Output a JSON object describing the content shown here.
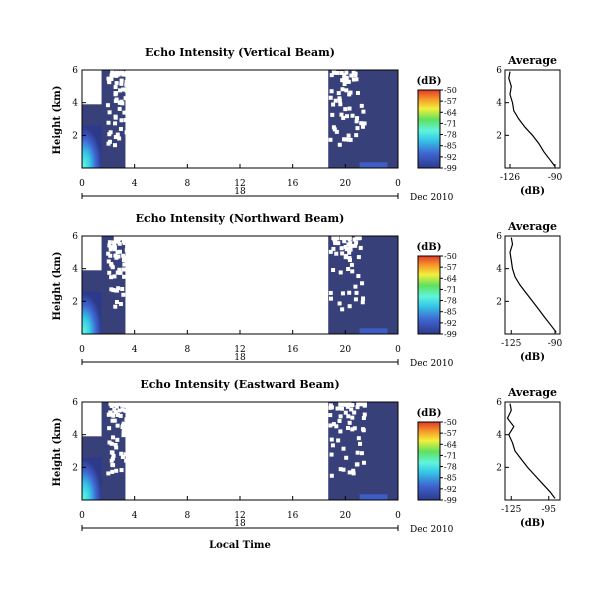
{
  "figure": {
    "xaxis_title": "Local Time",
    "x_ticks": [
      "0",
      "4",
      "8",
      "12",
      "16",
      "20",
      "0"
    ],
    "date_label": "Dec 2010",
    "day_marker": "18",
    "y_ticks": [
      "6",
      "4",
      "2"
    ],
    "avg_title": "Average",
    "avg_xlabel": "(dB)",
    "colorbar_unit": "(dB)",
    "colorbar_ticks": [
      "-50",
      "-57",
      "-64",
      "-71",
      "-78",
      "-85",
      "-92",
      "-99"
    ]
  },
  "chart_data": [
    {
      "type": "heatmap",
      "title": "Echo Intensity (Vertical Beam)",
      "ylabel": "Height (km)",
      "xlabel": "",
      "x_range_hours": [
        0,
        24
      ],
      "ylim_km": [
        0,
        6
      ],
      "colorbar_range_db": [
        -99,
        -50
      ],
      "data_coverage_hours": [
        [
          0,
          3.3
        ],
        [
          18.7,
          24
        ]
      ],
      "average_profile": {
        "title": "Average",
        "xlabel": "(dB)",
        "x_ticks": [
          "-126",
          "-90"
        ],
        "xlim": [
          -130,
          -86
        ],
        "height_km": [
          0.1,
          0.5,
          1.0,
          1.5,
          2.0,
          2.5,
          3.0,
          3.5,
          4.0,
          4.5,
          5.0,
          5.5,
          5.9
        ],
        "db": [
          -90,
          -94,
          -99,
          -103,
          -108,
          -114,
          -119,
          -123,
          -124,
          -126,
          -125,
          -127,
          -126
        ]
      }
    },
    {
      "type": "heatmap",
      "title": "Echo Intensity (Northward Beam)",
      "ylabel": "Height (km)",
      "xlabel": "",
      "x_range_hours": [
        0,
        24
      ],
      "ylim_km": [
        0,
        6
      ],
      "colorbar_range_db": [
        -99,
        -50
      ],
      "data_coverage_hours": [
        [
          0,
          3.3
        ],
        [
          18.7,
          24
        ]
      ],
      "average_profile": {
        "title": "Average",
        "xlabel": "(dB)",
        "x_ticks": [
          "-125",
          "-90"
        ],
        "xlim": [
          -130,
          -86
        ],
        "height_km": [
          0.1,
          0.5,
          1.0,
          1.5,
          2.0,
          2.5,
          3.0,
          3.5,
          4.0,
          4.5,
          5.0,
          5.5,
          5.9
        ],
        "db": [
          -89,
          -93,
          -98,
          -103,
          -108,
          -113,
          -118,
          -122,
          -124,
          -125,
          -126,
          -124,
          -125
        ]
      }
    },
    {
      "type": "heatmap",
      "title": "Echo Intensity (Eastward Beam)",
      "ylabel": "Height (km)",
      "xlabel": "Local Time",
      "x_range_hours": [
        0,
        24
      ],
      "ylim_km": [
        0,
        6
      ],
      "colorbar_range_db": [
        -99,
        -50
      ],
      "data_coverage_hours": [
        [
          0,
          3.3
        ],
        [
          18.7,
          24
        ]
      ],
      "average_profile": {
        "title": "Average",
        "xlabel": "(dB)",
        "x_ticks": [
          "-125",
          "-95"
        ],
        "xlim": [
          -130,
          -86
        ],
        "height_km": [
          0.1,
          0.5,
          1.0,
          1.5,
          2.0,
          2.5,
          3.0,
          3.5,
          4.0,
          4.5,
          5.0,
          5.5,
          5.9
        ],
        "db": [
          -90,
          -94,
          -100,
          -106,
          -112,
          -117,
          -122,
          -124,
          -127,
          -123,
          -128,
          -125,
          -126
        ]
      }
    }
  ],
  "colors": {
    "low": "#2d3a8c",
    "mid_blue": "#3f63d0",
    "cyan": "#35c8e8",
    "aqua": "#5ff5dd",
    "green": "#5fe05f",
    "yellow": "#f3ef3c",
    "orange": "#f59a2a",
    "red": "#e33a2a",
    "navy_fill": "#38407a"
  }
}
